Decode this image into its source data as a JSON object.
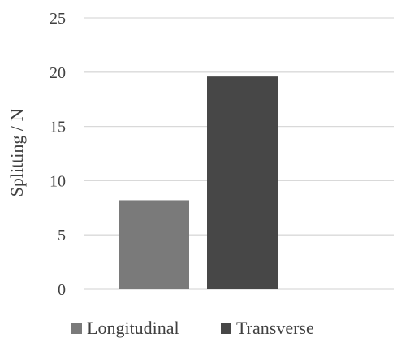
{
  "chart_data": {
    "type": "bar",
    "title": "",
    "xlabel": "",
    "ylabel": "Splitting / N",
    "ylim": [
      0,
      25
    ],
    "yticks": [
      0,
      5,
      10,
      15,
      20,
      25
    ],
    "grid": true,
    "legend_position": "bottom",
    "categories": [
      ""
    ],
    "series": [
      {
        "name": "Longitudinal",
        "values": [
          8.2
        ],
        "color": "#7a7a7a"
      },
      {
        "name": "Transverse",
        "values": [
          19.6
        ],
        "color": "#474747"
      }
    ]
  }
}
